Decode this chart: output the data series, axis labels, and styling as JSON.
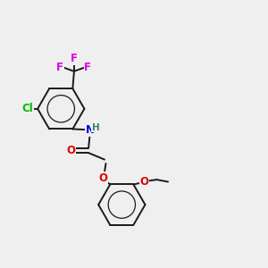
{
  "background_color": "#efefef",
  "bond_color": "#1a1a1a",
  "atom_colors": {
    "F": "#e000e0",
    "Cl": "#00bb00",
    "N": "#0000e0",
    "H": "#3a8080",
    "O": "#dd0000"
  },
  "figsize": [
    3.0,
    3.0
  ],
  "dpi": 100,
  "lw": 1.4,
  "ring_r": 0.088,
  "font_size_atom": 8.5,
  "font_size_h": 7.5
}
